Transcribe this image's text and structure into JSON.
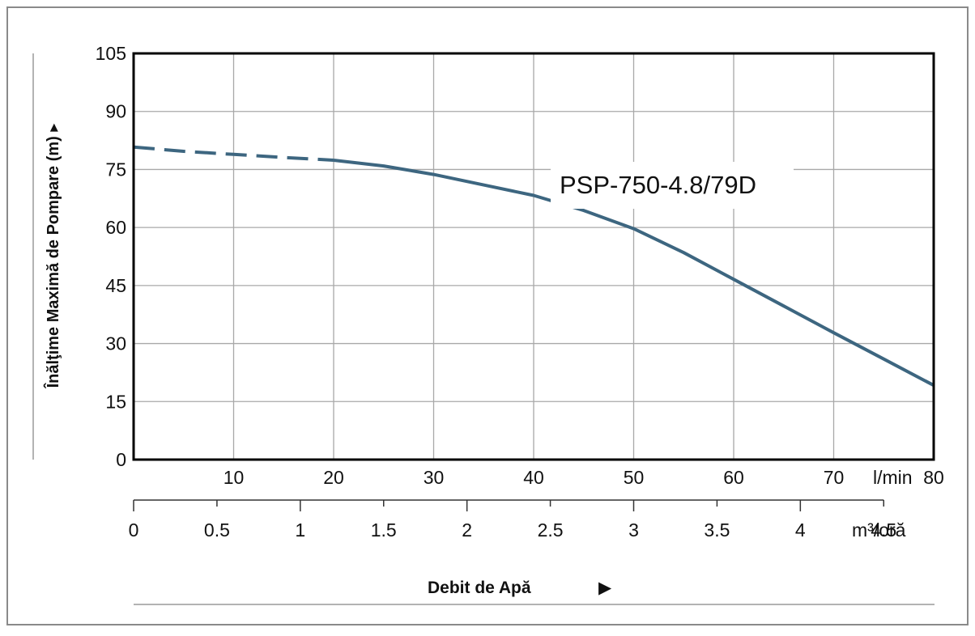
{
  "chart_data": {
    "type": "line",
    "curve_label": "PSP-750-4.8/79D",
    "ylabel": "Înălţime Maximă de Pompare (m) ▸",
    "xtitle": "Debit de Apă",
    "xtitle_arrow": "▶",
    "ylim": [
      0,
      105
    ],
    "xlim": [
      0,
      80
    ],
    "x_unit_lmin": "l/min",
    "x_unit_m3": "m³/oră",
    "yticks": [
      "0",
      "15",
      "30",
      "45",
      "60",
      "75",
      "90",
      "105"
    ],
    "xticks_lmin": [
      "10",
      "20",
      "30",
      "40",
      "50",
      "60",
      "70",
      "80"
    ],
    "xticks_m3": [
      "0",
      "0.5",
      "1",
      "1.5",
      "2",
      "2.5",
      "3",
      "3.5",
      "4",
      "4.5"
    ],
    "grid": true,
    "series": [
      {
        "style": "dashed",
        "color": "#3d6680",
        "x": [
          0,
          5,
          10,
          15,
          20
        ],
        "y": [
          80.8,
          79.7,
          78.9,
          78.1,
          77.4
        ]
      },
      {
        "style": "solid",
        "color": "#3d6680",
        "x": [
          20,
          25,
          30,
          35,
          40,
          45,
          50,
          55,
          60,
          65,
          70,
          75,
          80
        ],
        "y": [
          77.4,
          75.9,
          73.7,
          71.0,
          68.3,
          64.4,
          59.7,
          53.5,
          46.6,
          39.7,
          32.8,
          26.0,
          19.2
        ]
      }
    ]
  }
}
